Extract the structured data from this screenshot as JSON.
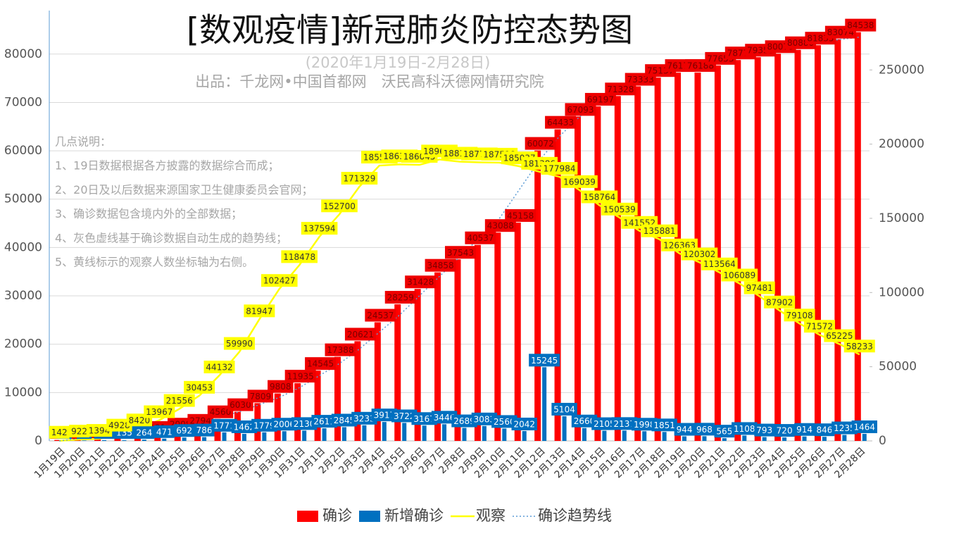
{
  "chart_data": {
    "type": "combo",
    "title": "[数观疫情]新冠肺炎防控态势图",
    "subtitle": "(2020年1月19日-2月28日)",
    "producer": "出品：千龙网•中国首都网　沃民高科沃德网情研究院",
    "notes": {
      "heading": "几点说明：",
      "lines": [
        "1、19日数据根据各方披露的数据综合而成；",
        "2、20日及以后数据来源国家卫生健康委员会官网；",
        "3、确诊数据包含境内外的全部数据；",
        "4、灰色虚线基于确诊数据自动生成的趋势线；",
        "5、黄线标示的观察人数坐标轴为右侧。"
      ]
    },
    "categories": [
      "1月19日",
      "1月20日",
      "1月21日",
      "1月22日",
      "1月23日",
      "1月24日",
      "1月25日",
      "1月26日",
      "1月27日",
      "1月28日",
      "1月29日",
      "1月30日",
      "1月31日",
      "2月1日",
      "2月2日",
      "2月3日",
      "2月4日",
      "2月5日",
      "2月6日",
      "2月7日",
      "2月8日",
      "2月9日",
      "2月10日",
      "2月11日",
      "2月12日",
      "2月13日",
      "2月14日",
      "2月15日",
      "2月16日",
      "2月17日",
      "2月18日",
      "2月19日",
      "2月20日",
      "2月21日",
      "2月22日",
      "2月23日",
      "2月24日",
      "2月25日",
      "2月26日",
      "2月27日",
      "2月28日"
    ],
    "series": [
      {
        "name": "确诊",
        "type": "bar",
        "color": "#ff0000",
        "label_fill": "#ee0000",
        "label_color": "#7a0000",
        "values": [
          201,
          294,
          444,
          579,
          843,
          1314,
          2008,
          2794,
          4560,
          6030,
          7809,
          9808,
          11935,
          14545,
          17388,
          20621,
          24537,
          28259,
          31428,
          34858,
          37543,
          40537,
          43088,
          45158,
          60072,
          64433,
          67093,
          69197,
          71328,
          73333,
          75137,
          76170,
          76188,
          77653,
          78774,
          79353,
          80079,
          80880,
          81835,
          83074,
          84538
        ]
      },
      {
        "name": "新增确诊",
        "type": "bar",
        "color": "#0070c0",
        "label_fill": "#0070c0",
        "label_color": "#ffffff",
        "values": [
          79,
          93,
          150,
          135,
          264,
          471,
          692,
          786,
          1771,
          1462,
          1779,
          2006,
          2130,
          2611,
          2845,
          3233,
          3917,
          3722,
          3167,
          3446,
          2689,
          3083,
          2560,
          2042,
          15245,
          5104,
          2660,
          2105,
          2137,
          1998,
          1851,
          944,
          968,
          565,
          1108,
          793,
          720,
          914,
          846,
          1235,
          1464
        ]
      },
      {
        "name": "观察",
        "type": "line",
        "axis": "y2",
        "color": "#ffff00",
        "label_fill": "#ffff00",
        "label_color": "#333333",
        "values": [
          142,
          922,
          1394,
          4928,
          8420,
          13967,
          21556,
          30453,
          44132,
          59990,
          81947,
          102427,
          118478,
          137594,
          152700,
          171329,
          185555,
          186354,
          186045,
          189660,
          188183,
          187728,
          187518,
          185037,
          181386,
          177984,
          169039,
          158764,
          150539,
          141552,
          135881,
          126363,
          120302,
          113564,
          106089,
          97481,
          87902,
          79108,
          71572,
          65225,
          58233
        ]
      },
      {
        "name": "确诊趋势线",
        "type": "line",
        "dashed": true,
        "color": "#5b9bd5",
        "values": [
          0,
          500,
          1000,
          1500,
          2000,
          2500,
          3000,
          4000,
          5000,
          6000,
          7500,
          9000,
          11000,
          13500,
          16000,
          19000,
          22500,
          26000,
          30000,
          34000,
          38000,
          42000,
          46000,
          52000,
          58000,
          63000,
          67000,
          70000,
          72500,
          74500,
          76000,
          77000,
          78000,
          79000,
          79800,
          80500,
          81200,
          81800,
          82400,
          83000,
          83500
        ]
      }
    ],
    "ylim": [
      0,
      89000
    ],
    "yticks": [
      0,
      10000,
      20000,
      30000,
      40000,
      50000,
      60000,
      70000,
      80000
    ],
    "y2lim": [
      0,
      290000
    ],
    "y2ticks": [
      0,
      50000,
      100000,
      150000,
      200000,
      250000
    ],
    "grid": true
  }
}
